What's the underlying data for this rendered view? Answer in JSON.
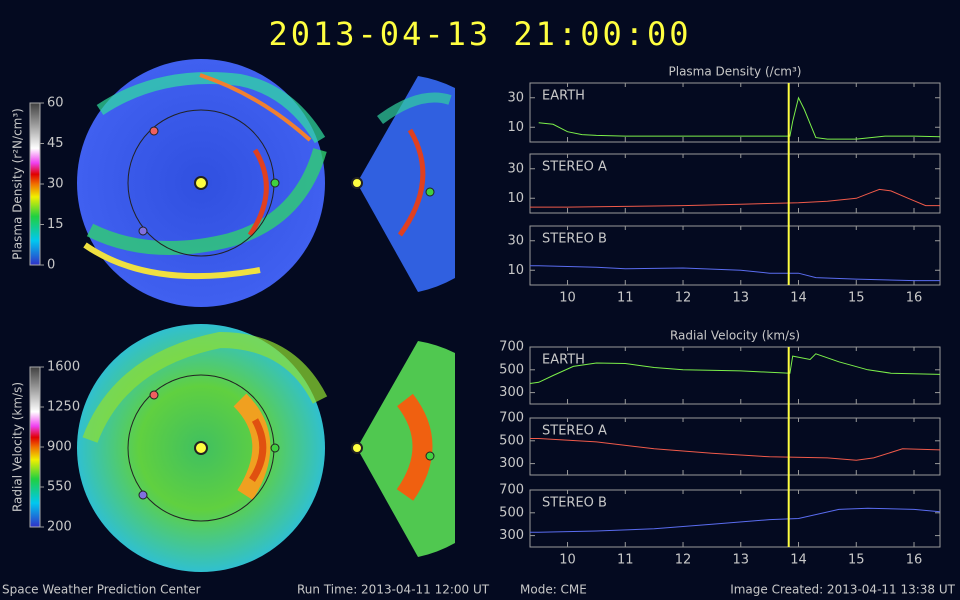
{
  "header": {
    "title": "2013-04-13 21:00:00"
  },
  "footer": {
    "center": "Space Weather Prediction Center",
    "run_time": "Run Time: 2013-04-11 12:00 UT",
    "mode": "Mode: CME",
    "created": "Image Created: 2013-04-11 13:38 UT"
  },
  "colorbars": [
    {
      "label": "Plasma Density (r²N/cm³)",
      "lim": [
        0,
        60
      ],
      "ticks": [
        0,
        15,
        30,
        45,
        60
      ]
    },
    {
      "label": "Radial Velocity (km/s)",
      "lim": [
        200,
        1600
      ],
      "ticks": [
        200,
        550,
        900,
        1250,
        1600
      ]
    }
  ],
  "chart_data": [
    {
      "type": "line",
      "title": "Plasma Density (/cm³)",
      "xlim": [
        9.35,
        16.45
      ],
      "xticks": [
        10,
        11,
        12,
        13,
        14,
        15,
        16
      ],
      "marker_x": 13.83,
      "marker_color": "#ffff40",
      "panels": [
        {
          "name": "EARTH",
          "color": "#7cf04a",
          "ylim": [
            0,
            40
          ],
          "yticks": [
            10,
            30
          ],
          "x": [
            9.5,
            9.75,
            10,
            10.25,
            10.5,
            11,
            11.5,
            12,
            12.5,
            13,
            13.5,
            13.85,
            13.9,
            14.0,
            14.1,
            14.3,
            14.5,
            15,
            15.25,
            15.5,
            16,
            16.45
          ],
          "values": [
            13,
            12,
            7,
            5,
            4.5,
            4,
            4,
            4,
            4,
            4,
            4,
            4,
            14,
            30,
            22,
            3,
            2,
            2,
            3,
            4,
            4,
            3.5
          ]
        },
        {
          "name": "STEREO A",
          "color": "#f05a4a",
          "ylim": [
            0,
            40
          ],
          "yticks": [
            10,
            30
          ],
          "x": [
            9.35,
            10,
            11,
            12,
            13,
            14,
            14.5,
            15,
            15.2,
            15.4,
            15.6,
            15.9,
            16.2,
            16.45
          ],
          "values": [
            4,
            4,
            4.5,
            5,
            6,
            7,
            8,
            10,
            13,
            16,
            15,
            10,
            5,
            5
          ]
        },
        {
          "name": "STEREO B",
          "color": "#5a6cf0",
          "ylim": [
            0,
            40
          ],
          "yticks": [
            10,
            30
          ],
          "x": [
            9.35,
            9.5,
            10.5,
            11,
            12,
            13,
            13.5,
            14,
            14.3,
            15,
            16,
            16.45
          ],
          "values": [
            13,
            13,
            12,
            11,
            11.5,
            10,
            8,
            8,
            5,
            4,
            3,
            3
          ]
        }
      ]
    },
    {
      "type": "line",
      "title": "Radial Velocity (km/s)",
      "xlim": [
        9.35,
        16.45
      ],
      "xticks": [
        10,
        11,
        12,
        13,
        14,
        15,
        16
      ],
      "marker_x": 13.83,
      "marker_color": "#ffff40",
      "panels": [
        {
          "name": "EARTH",
          "color": "#7cf04a",
          "ylim": [
            200,
            700
          ],
          "yticks": [
            300,
            500,
            700
          ],
          "x": [
            9.35,
            9.5,
            9.75,
            10.1,
            10.5,
            11,
            11.5,
            12,
            13,
            13.85,
            13.9,
            14.2,
            14.3,
            14.7,
            15.2,
            15.6,
            16.45
          ],
          "values": [
            380,
            390,
            450,
            530,
            560,
            555,
            520,
            500,
            490,
            470,
            620,
            590,
            640,
            570,
            500,
            470,
            460
          ]
        },
        {
          "name": "STEREO A",
          "color": "#f05a4a",
          "ylim": [
            200,
            700
          ],
          "yticks": [
            300,
            500,
            700
          ],
          "x": [
            9.35,
            9.5,
            10.5,
            11.5,
            12.5,
            13.5,
            14.5,
            15,
            15.3,
            15.8,
            16.45
          ],
          "values": [
            520,
            520,
            490,
            430,
            390,
            360,
            350,
            330,
            350,
            430,
            420
          ]
        },
        {
          "name": "STEREO B",
          "color": "#5a6cf0",
          "ylim": [
            200,
            700
          ],
          "yticks": [
            300,
            500,
            700
          ],
          "x": [
            9.35,
            9.5,
            10.5,
            11.5,
            12.5,
            13.5,
            14,
            14.7,
            15.2,
            16,
            16.45
          ],
          "values": [
            330,
            330,
            340,
            360,
            400,
            440,
            450,
            530,
            540,
            530,
            510
          ]
        }
      ]
    }
  ]
}
